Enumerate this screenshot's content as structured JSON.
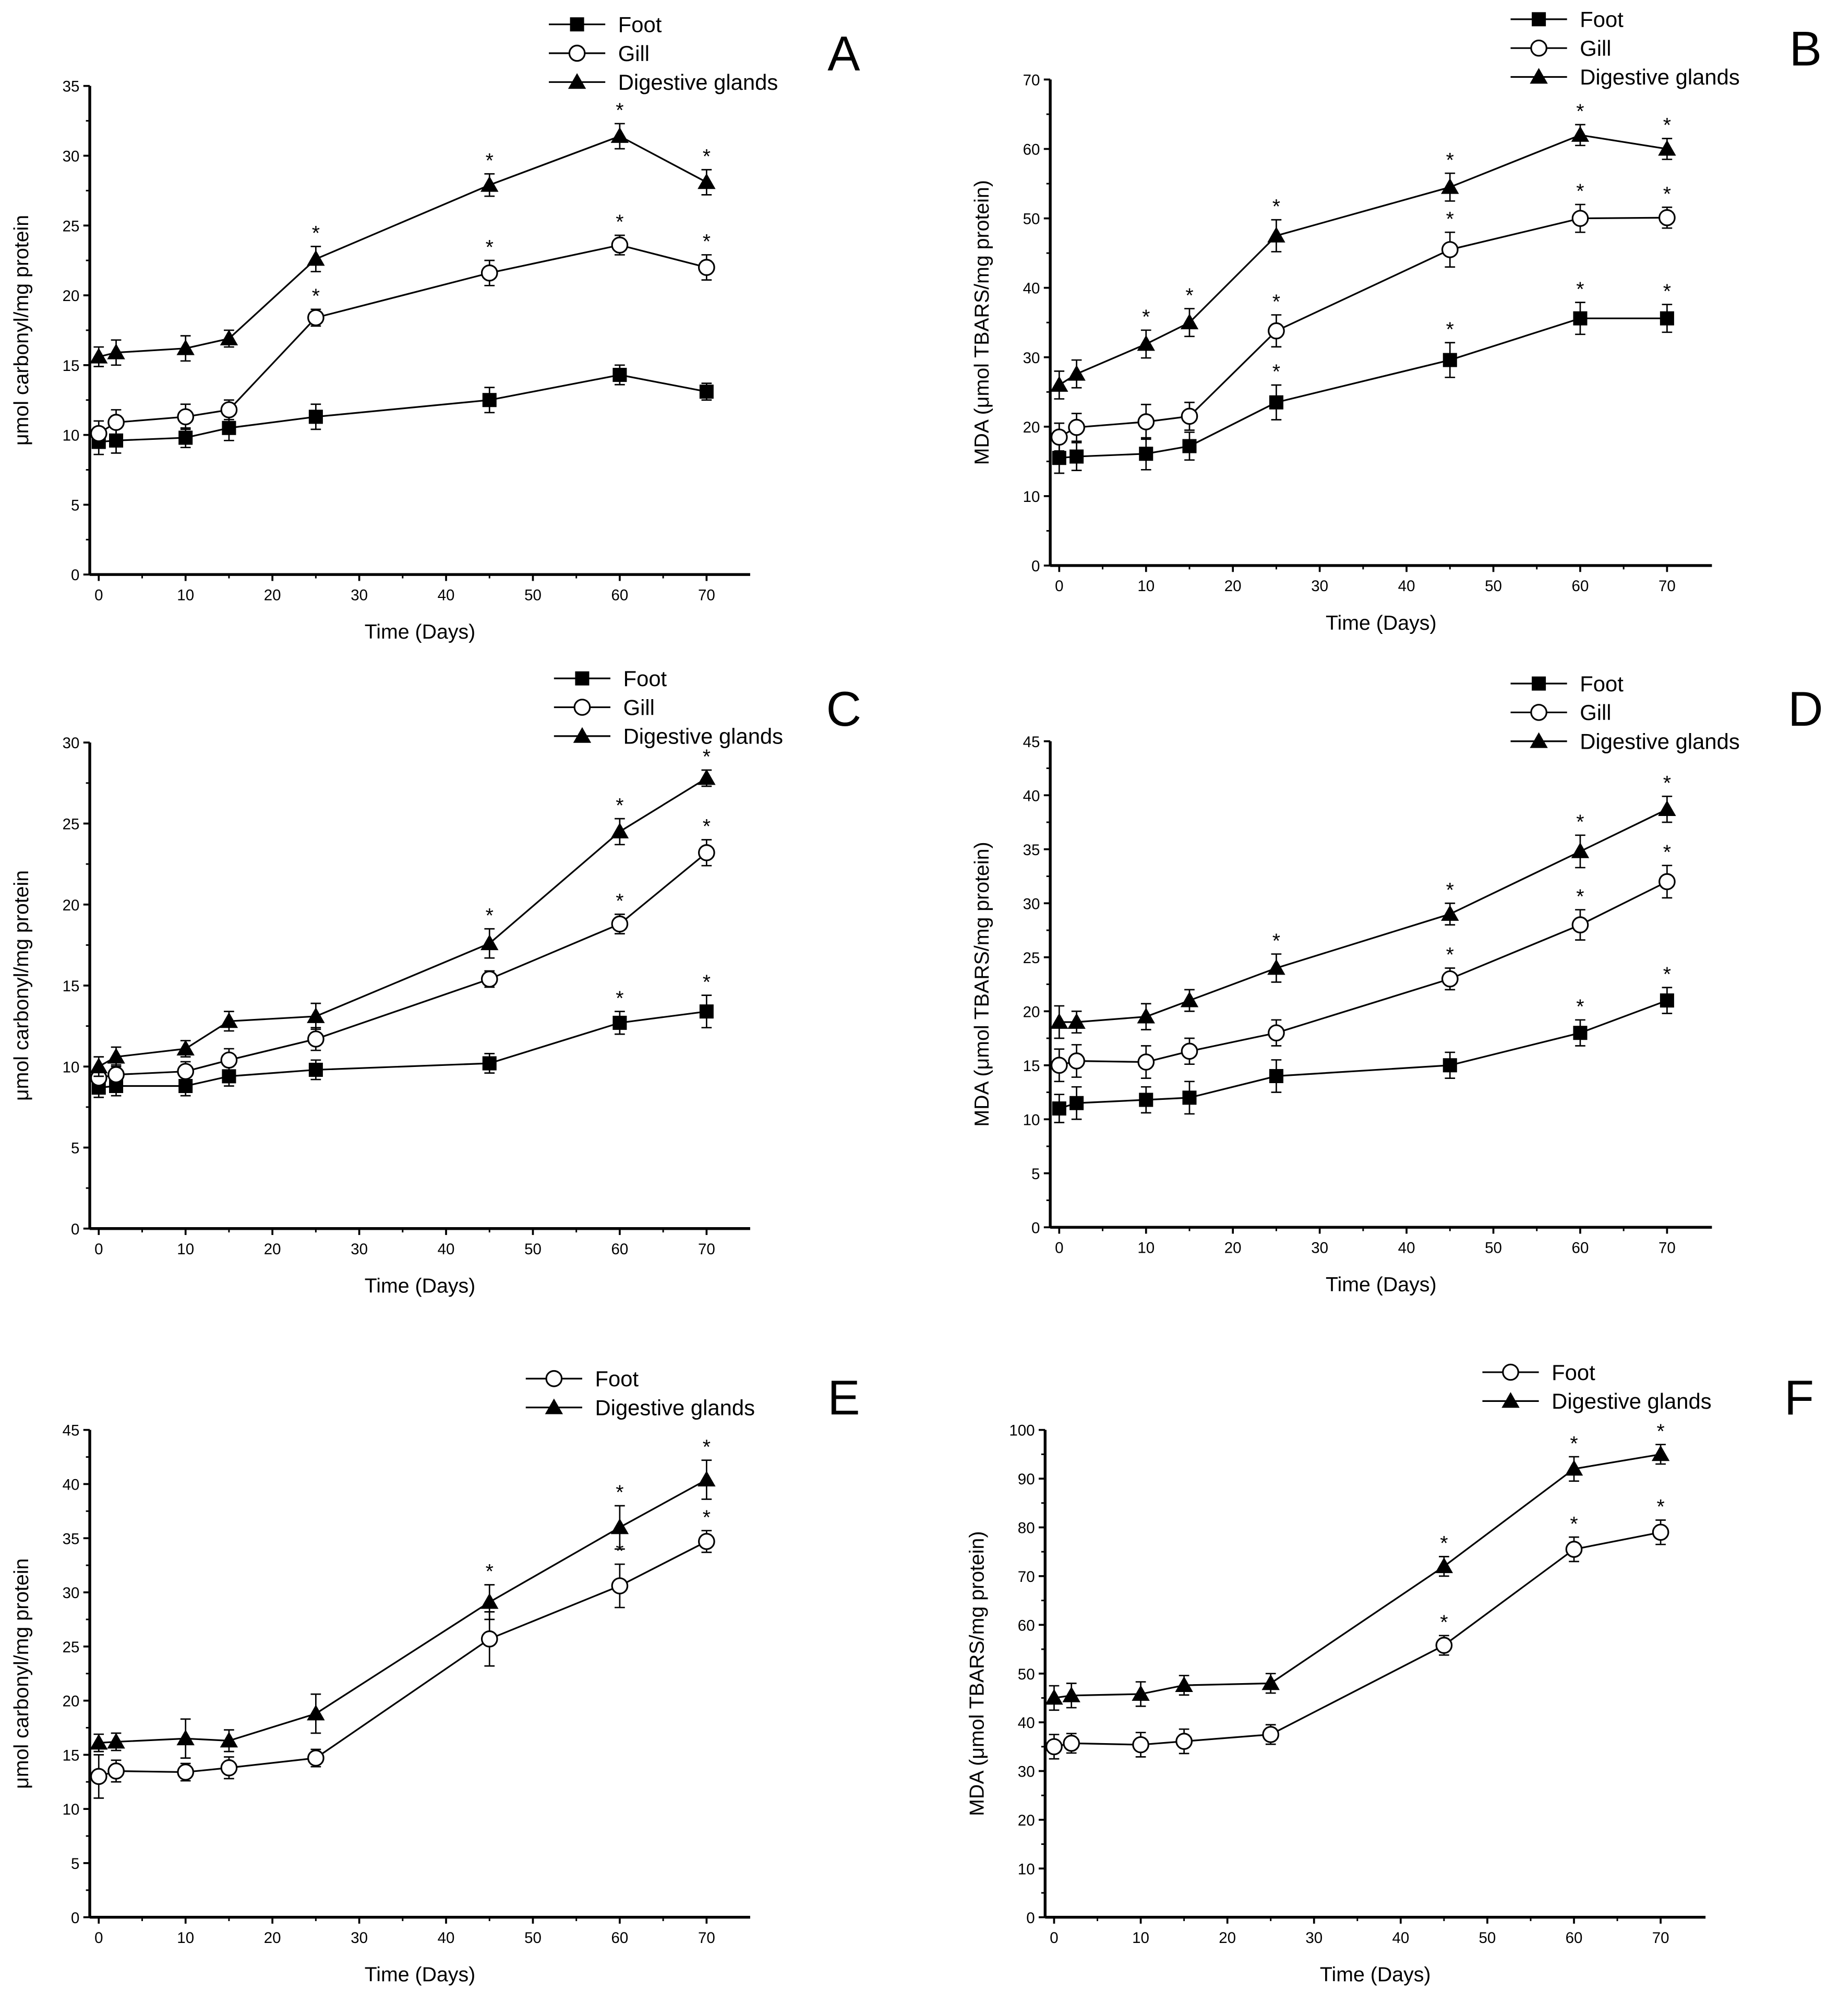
{
  "figure": {
    "x_label": "Time (Days)",
    "x_ticks": [
      0,
      10,
      20,
      30,
      40,
      50,
      60,
      70
    ],
    "significance_marker": "*"
  },
  "chart_data": [
    {
      "type": "line",
      "panel_label": "A",
      "title": "",
      "xlabel": "Time (Days)",
      "ylabel": "μmol carbonyl/mg protein",
      "xlim": [
        -1,
        75
      ],
      "ylim": [
        0,
        35
      ],
      "y_ticks": [
        0,
        5,
        10,
        15,
        20,
        25,
        30,
        35
      ],
      "legend_position": "top-right",
      "x": [
        0,
        2,
        10,
        15,
        25,
        45,
        60,
        70
      ],
      "series": [
        {
          "name": "Foot",
          "marker": "square",
          "values": [
            9.5,
            9.6,
            9.8,
            10.5,
            11.3,
            12.5,
            14.3,
            13.1
          ],
          "errors": [
            0.9,
            0.9,
            0.7,
            0.9,
            0.9,
            0.9,
            0.7,
            0.6
          ],
          "significant": [
            false,
            false,
            false,
            false,
            false,
            false,
            false,
            false
          ]
        },
        {
          "name": "Gill",
          "marker": "circle",
          "values": [
            10.1,
            10.9,
            11.3,
            11.8,
            18.4,
            21.6,
            23.6,
            22.0
          ],
          "errors": [
            0.9,
            0.9,
            0.9,
            0.7,
            0.6,
            0.9,
            0.7,
            0.9
          ],
          "significant": [
            false,
            false,
            false,
            false,
            true,
            true,
            true,
            true
          ]
        },
        {
          "name": "Digestive glands",
          "marker": "triangle",
          "values": [
            15.6,
            15.9,
            16.2,
            16.9,
            22.6,
            27.9,
            31.4,
            28.1
          ],
          "errors": [
            0.7,
            0.9,
            0.9,
            0.6,
            0.9,
            0.8,
            0.9,
            0.9
          ],
          "significant": [
            false,
            false,
            false,
            false,
            true,
            true,
            true,
            true
          ]
        }
      ]
    },
    {
      "type": "line",
      "panel_label": "B",
      "title": "",
      "xlabel": "Time (Days)",
      "ylabel": "MDA (μmol TBARS/mg protein)",
      "xlim": [
        -1,
        75
      ],
      "ylim": [
        0,
        70
      ],
      "y_ticks": [
        0,
        10,
        20,
        30,
        40,
        50,
        60,
        70
      ],
      "legend_position": "top-right",
      "x": [
        0,
        2,
        10,
        15,
        25,
        45,
        60,
        70
      ],
      "series": [
        {
          "name": "Foot",
          "marker": "square",
          "values": [
            15.5,
            15.7,
            16.1,
            17.2,
            23.5,
            29.6,
            35.6,
            35.6
          ],
          "errors": [
            2.2,
            2.0,
            2.3,
            2.0,
            2.5,
            2.5,
            2.3,
            2.0
          ],
          "significant": [
            false,
            false,
            false,
            false,
            true,
            true,
            true,
            true
          ]
        },
        {
          "name": "Gill",
          "marker": "circle",
          "values": [
            18.5,
            19.9,
            20.7,
            21.5,
            33.8,
            45.5,
            50.0,
            50.1
          ],
          "errors": [
            2.0,
            2.0,
            2.5,
            2.0,
            2.3,
            2.5,
            2.0,
            1.5
          ],
          "significant": [
            false,
            false,
            false,
            false,
            true,
            true,
            true,
            true
          ]
        },
        {
          "name": "Digestive glands",
          "marker": "triangle",
          "values": [
            26.0,
            27.6,
            31.9,
            35.0,
            47.5,
            54.5,
            62.0,
            60.0
          ],
          "errors": [
            2.0,
            2.0,
            2.0,
            2.0,
            2.3,
            2.0,
            1.5,
            1.5
          ],
          "significant": [
            false,
            false,
            true,
            true,
            true,
            true,
            true,
            true
          ]
        }
      ]
    },
    {
      "type": "line",
      "panel_label": "C",
      "title": "",
      "xlabel": "Time (Days)",
      "ylabel": "μmol carbonyl/mg protein",
      "xlim": [
        -1,
        75
      ],
      "ylim": [
        0,
        30
      ],
      "y_ticks": [
        0,
        5,
        10,
        15,
        20,
        25,
        30
      ],
      "legend_position": "top-right",
      "x": [
        0,
        2,
        10,
        15,
        25,
        45,
        60,
        70
      ],
      "series": [
        {
          "name": "Foot",
          "marker": "square",
          "values": [
            8.7,
            8.8,
            8.8,
            9.4,
            9.8,
            10.2,
            12.7,
            13.4
          ],
          "errors": [
            0.6,
            0.6,
            0.6,
            0.6,
            0.6,
            0.6,
            0.7,
            1.0
          ],
          "significant": [
            false,
            false,
            false,
            false,
            false,
            false,
            true,
            true
          ]
        },
        {
          "name": "Gill",
          "marker": "circle",
          "values": [
            9.3,
            9.5,
            9.7,
            10.4,
            11.7,
            15.4,
            18.8,
            23.2
          ],
          "errors": [
            0.6,
            0.6,
            0.6,
            0.7,
            0.7,
            0.5,
            0.6,
            0.8
          ],
          "significant": [
            false,
            false,
            false,
            false,
            false,
            false,
            true,
            true
          ]
        },
        {
          "name": "Digestive glands",
          "marker": "triangle",
          "values": [
            10.0,
            10.6,
            11.1,
            12.8,
            13.1,
            17.6,
            24.5,
            27.8
          ],
          "errors": [
            0.6,
            0.6,
            0.5,
            0.6,
            0.8,
            0.9,
            0.8,
            0.5
          ],
          "significant": [
            false,
            false,
            false,
            false,
            false,
            true,
            true,
            true
          ]
        }
      ]
    },
    {
      "type": "line",
      "panel_label": "D",
      "title": "",
      "xlabel": "Time (Days)",
      "ylabel": "MDA (μmol TBARS/mg protein)",
      "xlim": [
        -1,
        75
      ],
      "ylim": [
        0,
        45
      ],
      "y_ticks": [
        0,
        5,
        10,
        15,
        20,
        25,
        30,
        35,
        40,
        45
      ],
      "legend_position": "top-right",
      "x": [
        0,
        2,
        10,
        15,
        25,
        45,
        60,
        70
      ],
      "series": [
        {
          "name": "Foot",
          "marker": "square",
          "values": [
            11.0,
            11.5,
            11.8,
            12.0,
            14.0,
            15.0,
            18.0,
            21.0
          ],
          "errors": [
            1.3,
            1.5,
            1.2,
            1.5,
            1.5,
            1.2,
            1.2,
            1.2
          ],
          "significant": [
            false,
            false,
            false,
            false,
            false,
            false,
            true,
            true
          ]
        },
        {
          "name": "Gill",
          "marker": "circle",
          "values": [
            15.0,
            15.4,
            15.3,
            16.3,
            18.0,
            23.0,
            28.0,
            32.0
          ],
          "errors": [
            1.5,
            1.5,
            1.5,
            1.2,
            1.2,
            1.0,
            1.4,
            1.5
          ],
          "significant": [
            false,
            false,
            false,
            false,
            false,
            true,
            true,
            true
          ]
        },
        {
          "name": "Digestive glands",
          "marker": "triangle",
          "values": [
            19.0,
            19.0,
            19.5,
            21.0,
            24.0,
            29.0,
            34.8,
            38.7
          ],
          "errors": [
            1.5,
            1.0,
            1.2,
            1.0,
            1.3,
            1.0,
            1.5,
            1.2
          ],
          "significant": [
            false,
            false,
            false,
            false,
            true,
            true,
            true,
            true
          ]
        }
      ]
    },
    {
      "type": "line",
      "panel_label": "E",
      "title": "",
      "xlabel": "Time (Days)",
      "ylabel": "μmol carbonyl/mg protein",
      "xlim": [
        -1,
        75
      ],
      "ylim": [
        0,
        45
      ],
      "y_ticks": [
        0,
        5,
        10,
        15,
        20,
        25,
        30,
        35,
        40,
        45
      ],
      "legend_position": "top-right",
      "x": [
        0,
        2,
        10,
        15,
        25,
        45,
        60,
        70
      ],
      "series": [
        {
          "name": "Foot",
          "marker": "circle",
          "values": [
            13.0,
            13.5,
            13.4,
            13.8,
            14.7,
            25.7,
            30.6,
            34.7
          ],
          "errors": [
            2.0,
            1.0,
            0.8,
            1.0,
            0.8,
            2.5,
            2.0,
            1.0
          ],
          "significant": [
            false,
            false,
            false,
            false,
            false,
            false,
            true,
            true
          ]
        },
        {
          "name": "Digestive glands",
          "marker": "triangle",
          "values": [
            16.1,
            16.2,
            16.5,
            16.3,
            18.8,
            29.1,
            36.0,
            40.4
          ],
          "errors": [
            0.8,
            0.8,
            1.8,
            1.0,
            1.8,
            1.6,
            2.0,
            1.8
          ],
          "significant": [
            false,
            false,
            false,
            false,
            false,
            true,
            true,
            true
          ]
        }
      ]
    },
    {
      "type": "line",
      "panel_label": "F",
      "title": "",
      "xlabel": "Time (Days)",
      "ylabel": "MDA (μmol TBARS/mg protein)",
      "xlim": [
        -1,
        75
      ],
      "ylim": [
        0,
        100
      ],
      "y_ticks": [
        0,
        10,
        20,
        30,
        40,
        50,
        60,
        70,
        80,
        90,
        100
      ],
      "legend_position": "top-right",
      "x": [
        0,
        2,
        10,
        15,
        25,
        45,
        60,
        70
      ],
      "series": [
        {
          "name": "Foot",
          "marker": "circle",
          "values": [
            35.0,
            35.7,
            35.4,
            36.1,
            37.5,
            55.8,
            75.5,
            79.0
          ],
          "errors": [
            2.5,
            2.0,
            2.5,
            2.5,
            2.0,
            2.0,
            2.5,
            2.5
          ],
          "significant": [
            false,
            false,
            false,
            false,
            false,
            true,
            true,
            true
          ]
        },
        {
          "name": "Digestive glands",
          "marker": "triangle",
          "values": [
            45.0,
            45.5,
            45.8,
            47.6,
            48.0,
            72.0,
            92.0,
            95.0
          ],
          "errors": [
            2.5,
            2.5,
            2.5,
            2.0,
            2.0,
            2.0,
            2.5,
            2.0
          ],
          "significant": [
            false,
            false,
            false,
            false,
            false,
            true,
            true,
            true
          ]
        }
      ]
    }
  ]
}
